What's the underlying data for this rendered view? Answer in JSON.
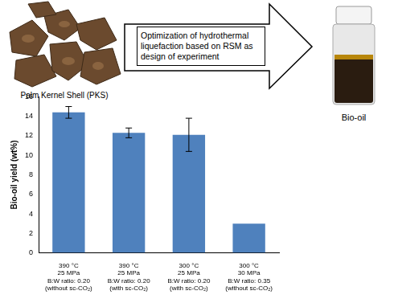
{
  "chart_data": {
    "type": "bar",
    "categories": [
      [
        "390 °C",
        "25 MPa",
        "B:W ratio: 0.20",
        "(without sc-CO₂)"
      ],
      [
        "390 °C",
        "25 MPa",
        "B:W ratio: 0.20",
        "(with sc-CO₂)"
      ],
      [
        "300 °C",
        "25 MPa",
        "B:W ratio: 0.20",
        "(with sc-CO₂)"
      ],
      [
        "300 °C",
        "30 MPa",
        "B:W ratio: 0.35",
        "(without sc-CO₂)"
      ]
    ],
    "values": [
      14.4,
      12.3,
      12.1,
      3
    ],
    "errors": [
      0.6,
      0.5,
      1.7,
      null
    ],
    "color": "#4f81bd",
    "y_label": "Bio-oil yield (wt%)",
    "ylim": [
      0,
      16
    ],
    "yticks": [
      0,
      2,
      4,
      6,
      8,
      10,
      12,
      14,
      16
    ],
    "grid": false
  },
  "diagram": {
    "input_label": "Palm Kernel Shell (PKS)",
    "process_label": "Optimization of hydrothermal liquefaction based on RSM as design of experiment",
    "output_label": "Bio-oil"
  }
}
